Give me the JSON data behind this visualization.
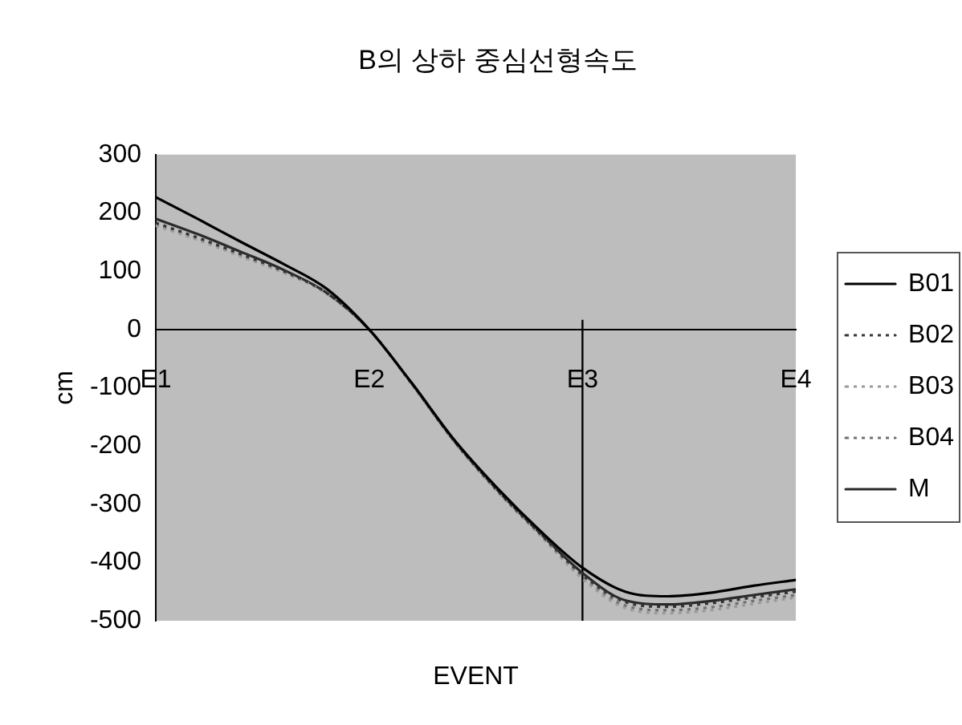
{
  "chart_data": {
    "type": "line",
    "title": "B의 상하 중심선형속도",
    "xlabel": "EVENT",
    "ylabel": "cm",
    "categories": [
      "E1",
      null,
      null,
      null,
      null,
      "E2",
      null,
      null,
      null,
      null,
      "E3",
      null,
      null,
      null,
      null,
      "E4"
    ],
    "ylim": [
      -500,
      300
    ],
    "yticks": [
      -500,
      -400,
      -300,
      -200,
      -100,
      0,
      100,
      200,
      300
    ],
    "series": [
      {
        "name": "B01",
        "color": "#000000",
        "line_style": "solid",
        "values": [
          227,
          189,
          150,
          112,
          70,
          0,
          -92,
          -190,
          -272,
          -345,
          -409,
          -450,
          -458,
          -452,
          -440,
          -430
        ]
      },
      {
        "name": "B02",
        "color": "#333333",
        "line_style": "dotted",
        "values": [
          183,
          157,
          129,
          100,
          63,
          0,
          -93,
          -192,
          -276,
          -350,
          -421,
          -468,
          -476,
          -470,
          -460,
          -450
        ]
      },
      {
        "name": "B03",
        "color": "#9a9a9a",
        "line_style": "dotted",
        "values": [
          178,
          153,
          125,
          97,
          62,
          -1,
          -94,
          -193,
          -278,
          -353,
          -428,
          -478,
          -487,
          -482,
          -471,
          -460
        ]
      },
      {
        "name": "B04",
        "color": "#707070",
        "line_style": "dotted",
        "values": [
          181,
          155,
          127,
          98,
          62,
          -1,
          -94,
          -193,
          -277,
          -352,
          -425,
          -474,
          -482,
          -477,
          -466,
          -456
        ]
      },
      {
        "name": "M",
        "color": "#2a2a2a",
        "line_style": "solid",
        "values": [
          190,
          163,
          133,
          102,
          63,
          0,
          -93,
          -192,
          -275,
          -349,
          -418,
          -465,
          -472,
          -466,
          -456,
          -446
        ]
      }
    ],
    "legend": "right",
    "marker": "none",
    "ref_lines": [
      {
        "axis": "x",
        "value": "E3",
        "color": "#000000"
      }
    ]
  }
}
